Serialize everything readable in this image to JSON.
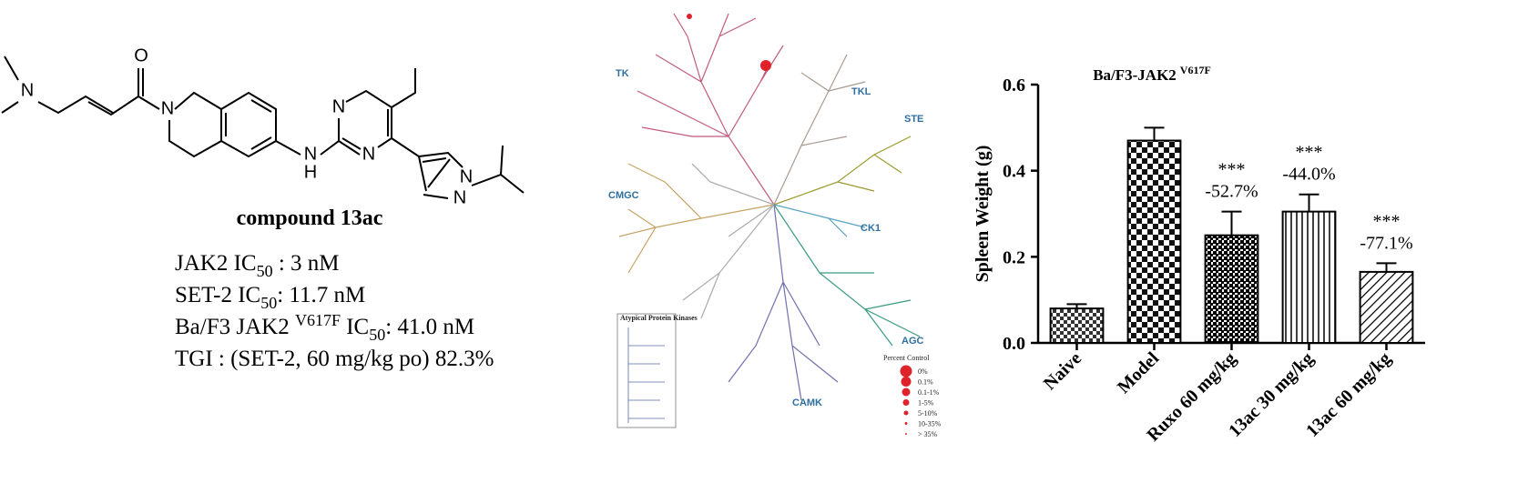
{
  "compound": {
    "name": "compound 13ac",
    "atoms": [
      "N",
      "O",
      "N",
      "N",
      "H",
      "N",
      "N",
      "N",
      "N"
    ],
    "properties": [
      {
        "label": "JAK2 IC",
        "subscript": "50",
        "value": " : 3 nM"
      },
      {
        "label": "SET-2 IC",
        "subscript": "50",
        "value": ": 11.7 nM"
      },
      {
        "label": "Ba/F3 JAK2 ",
        "superscript": "V617F",
        "label2": " IC",
        "subscript": "50",
        "value": ": 41.0 nM"
      },
      {
        "label": "TGI : (SET-2, 60 mg/kg po)  82.3%"
      }
    ]
  },
  "kinome": {
    "groups": [
      "TK",
      "TKL",
      "STE",
      "CK1",
      "AGC",
      "CAMK",
      "CMGC"
    ],
    "legend_title": "Percent Control",
    "legend_items": [
      "0%",
      "0.1%",
      "0.1-1%",
      "1-5%",
      "5-10%",
      "10-35%",
      "> 35%"
    ],
    "inset_title": "Atypical Protein Kinases"
  },
  "chart_data": {
    "type": "bar",
    "title": "Ba/F3-JAK2",
    "title_superscript": "V617F",
    "y_label": "Spleen Weight (g)",
    "categories": [
      "Naive",
      "Model",
      "Ruxo 60 mg/kg",
      "13ac 30 mg/kg",
      "13ac 60 mg/kg"
    ],
    "values": [
      0.08,
      0.47,
      0.25,
      0.305,
      0.165
    ],
    "errors": [
      0.01,
      0.03,
      0.055,
      0.04,
      0.02
    ],
    "significance": [
      null,
      null,
      "***",
      "***",
      "***"
    ],
    "change_labels": [
      null,
      null,
      "-52.7%",
      "-44.0%",
      "-77.1%"
    ],
    "patterns": [
      "checker-small",
      "checker-large",
      "checker-dark",
      "vertical-lines",
      "diagonal-lines"
    ],
    "ylim": [
      0,
      0.6
    ],
    "yticks": [
      {
        "value": 0,
        "label": "0.0"
      },
      0.2,
      0.4,
      0.6
    ]
  }
}
